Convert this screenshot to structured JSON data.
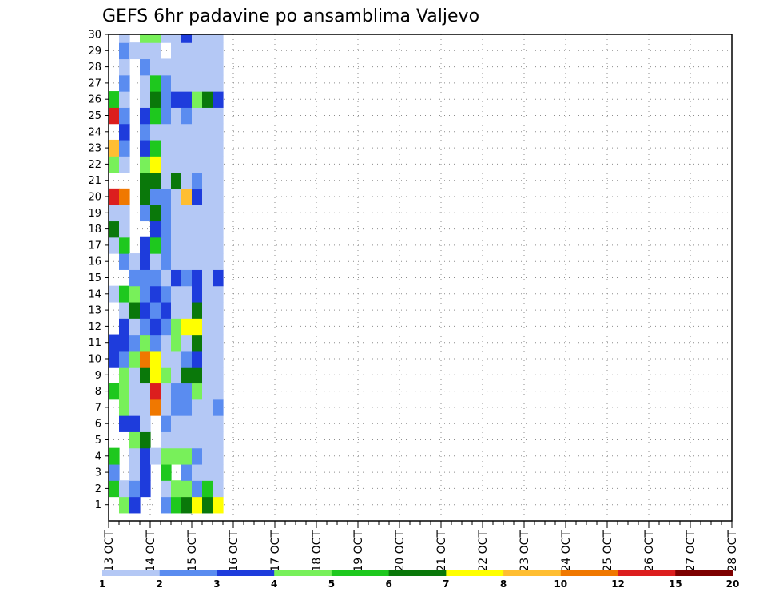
{
  "chart_data": {
    "type": "heatmap",
    "title": "GEFS 6hr padavine po ansamblima Valjevo",
    "xlabel": "",
    "ylabel": "",
    "x_ticks": [
      "13 OCT",
      "14 OCT",
      "15 OCT",
      "16 OCT",
      "17 OCT",
      "18 OCT",
      "19 OCT",
      "20 OCT",
      "21 OCT",
      "22 OCT",
      "23 OCT",
      "24 OCT",
      "25 OCT",
      "26 OCT",
      "27 OCT",
      "28 OCT"
    ],
    "y_ticks": [
      "1",
      "2",
      "3",
      "4",
      "5",
      "6",
      "7",
      "8",
      "9",
      "10",
      "11",
      "12",
      "13",
      "14",
      "15",
      "16",
      "17",
      "18",
      "19",
      "20",
      "21",
      "22",
      "23",
      "24",
      "25",
      "26",
      "27",
      "28",
      "29",
      "30"
    ],
    "x_unit": "6-hour step from 13 OCT 00Z",
    "xlim": [
      0,
      60
    ],
    "ylim": [
      0,
      30
    ],
    "grid": true,
    "colorbar": {
      "labels": [
        "1",
        "2",
        "3",
        "4",
        "5",
        "6",
        "7",
        "8",
        "10",
        "12",
        "15",
        "20"
      ],
      "colors": [
        "#b4c8f5",
        "#5a8cf0",
        "#1e3cdc",
        "#78f05a",
        "#1ec81e",
        "#0a780a",
        "#ffff00",
        "#ffbe32",
        "#f07800",
        "#dc1e1e",
        "#7d0000"
      ]
    },
    "cells": [
      [
        0,
        2,
        5
      ],
      [
        0,
        3,
        2
      ],
      [
        0,
        4,
        5
      ],
      [
        0,
        8,
        5
      ],
      [
        0,
        10,
        3
      ],
      [
        0,
        11,
        3
      ],
      [
        0,
        14,
        1
      ],
      [
        0,
        17,
        1
      ],
      [
        0,
        18,
        6
      ],
      [
        0,
        19,
        1
      ],
      [
        0,
        20,
        10
      ],
      [
        0,
        22,
        4
      ],
      [
        0,
        23,
        8
      ],
      [
        0,
        25,
        10
      ],
      [
        0,
        26,
        5
      ],
      [
        1,
        1,
        4
      ],
      [
        1,
        2,
        1
      ],
      [
        1,
        6,
        3
      ],
      [
        1,
        7,
        4
      ],
      [
        1,
        8,
        4
      ],
      [
        1,
        9,
        4
      ],
      [
        1,
        10,
        2
      ],
      [
        1,
        11,
        3
      ],
      [
        1,
        12,
        3
      ],
      [
        1,
        13,
        1
      ],
      [
        1,
        14,
        5
      ],
      [
        1,
        16,
        2
      ],
      [
        1,
        17,
        5
      ],
      [
        1,
        18,
        1
      ],
      [
        1,
        19,
        1
      ],
      [
        1,
        20,
        9
      ],
      [
        1,
        22,
        1
      ],
      [
        1,
        23,
        2
      ],
      [
        1,
        24,
        3
      ],
      [
        1,
        25,
        2
      ],
      [
        1,
        26,
        1
      ],
      [
        1,
        27,
        2
      ],
      [
        1,
        28,
        1
      ],
      [
        1,
        29,
        2
      ],
      [
        1,
        30,
        1
      ],
      [
        2,
        1,
        3
      ],
      [
        2,
        2,
        2
      ],
      [
        2,
        3,
        1
      ],
      [
        2,
        4,
        1
      ],
      [
        2,
        5,
        4
      ],
      [
        2,
        6,
        3
      ],
      [
        2,
        7,
        1
      ],
      [
        2,
        8,
        1
      ],
      [
        2,
        9,
        1
      ],
      [
        2,
        10,
        4
      ],
      [
        2,
        11,
        2
      ],
      [
        2,
        12,
        1
      ],
      [
        2,
        13,
        6
      ],
      [
        2,
        14,
        4
      ],
      [
        2,
        15,
        2
      ],
      [
        2,
        16,
        1
      ],
      [
        2,
        29,
        1
      ],
      [
        3,
        2,
        3
      ],
      [
        3,
        3,
        3
      ],
      [
        3,
        4,
        3
      ],
      [
        3,
        5,
        6
      ],
      [
        3,
        6,
        1
      ],
      [
        3,
        7,
        1
      ],
      [
        3,
        8,
        1
      ],
      [
        3,
        9,
        6
      ],
      [
        3,
        10,
        9
      ],
      [
        3,
        11,
        4
      ],
      [
        3,
        12,
        2
      ],
      [
        3,
        13,
        3
      ],
      [
        3,
        14,
        2
      ],
      [
        3,
        15,
        2
      ],
      [
        3,
        16,
        3
      ],
      [
        3,
        17,
        3
      ],
      [
        3,
        19,
        2
      ],
      [
        3,
        20,
        6
      ],
      [
        3,
        21,
        6
      ],
      [
        3,
        22,
        4
      ],
      [
        3,
        23,
        3
      ],
      [
        3,
        24,
        2
      ],
      [
        3,
        25,
        3
      ],
      [
        3,
        26,
        1
      ],
      [
        3,
        27,
        1
      ],
      [
        3,
        28,
        2
      ],
      [
        3,
        29,
        1
      ],
      [
        3,
        30,
        4
      ],
      [
        4,
        4,
        1
      ],
      [
        4,
        7,
        9
      ],
      [
        4,
        8,
        10
      ],
      [
        4,
        9,
        7
      ],
      [
        4,
        10,
        7
      ],
      [
        4,
        11,
        2
      ],
      [
        4,
        12,
        3
      ],
      [
        4,
        13,
        2
      ],
      [
        4,
        14,
        3
      ],
      [
        4,
        15,
        2
      ],
      [
        4,
        16,
        1
      ],
      [
        4,
        17,
        5
      ],
      [
        4,
        18,
        3
      ],
      [
        4,
        19,
        6
      ],
      [
        4,
        20,
        2
      ],
      [
        4,
        21,
        6
      ],
      [
        4,
        22,
        7
      ],
      [
        4,
        23,
        5
      ],
      [
        4,
        24,
        1
      ],
      [
        4,
        25,
        5
      ],
      [
        4,
        26,
        6
      ],
      [
        4,
        27,
        5
      ],
      [
        4,
        28,
        1
      ],
      [
        4,
        29,
        1
      ],
      [
        4,
        30,
        4
      ],
      [
        5,
        1,
        2
      ],
      [
        5,
        2,
        1
      ],
      [
        5,
        3,
        5
      ],
      [
        5,
        4,
        4
      ],
      [
        5,
        5,
        1
      ],
      [
        5,
        6,
        2
      ],
      [
        5,
        7,
        1
      ],
      [
        5,
        8,
        1
      ],
      [
        5,
        9,
        4
      ],
      [
        5,
        10,
        1
      ],
      [
        5,
        11,
        1
      ],
      [
        5,
        12,
        2
      ],
      [
        5,
        13,
        3
      ],
      [
        5,
        14,
        2
      ],
      [
        5,
        15,
        1
      ],
      [
        5,
        16,
        2
      ],
      [
        5,
        17,
        2
      ],
      [
        5,
        18,
        2
      ],
      [
        5,
        19,
        2
      ],
      [
        5,
        20,
        2
      ],
      [
        5,
        21,
        1
      ],
      [
        5,
        22,
        1
      ],
      [
        5,
        23,
        1
      ],
      [
        5,
        24,
        1
      ],
      [
        5,
        25,
        2
      ],
      [
        5,
        26,
        2
      ],
      [
        5,
        27,
        2
      ],
      [
        5,
        28,
        1
      ],
      [
        5,
        30,
        1
      ],
      [
        6,
        1,
        5
      ],
      [
        6,
        2,
        4
      ],
      [
        6,
        4,
        4
      ],
      [
        6,
        5,
        1
      ],
      [
        6,
        6,
        1
      ],
      [
        6,
        7,
        2
      ],
      [
        6,
        8,
        2
      ],
      [
        6,
        9,
        1
      ],
      [
        6,
        10,
        1
      ],
      [
        6,
        11,
        4
      ],
      [
        6,
        12,
        4
      ],
      [
        6,
        13,
        1
      ],
      [
        6,
        14,
        1
      ],
      [
        6,
        15,
        3
      ],
      [
        6,
        16,
        1
      ],
      [
        6,
        17,
        1
      ],
      [
        6,
        18,
        1
      ],
      [
        6,
        19,
        1
      ],
      [
        6,
        20,
        1
      ],
      [
        6,
        21,
        6
      ],
      [
        6,
        22,
        1
      ],
      [
        6,
        23,
        1
      ],
      [
        6,
        24,
        1
      ],
      [
        6,
        25,
        1
      ],
      [
        6,
        26,
        3
      ],
      [
        6,
        27,
        1
      ],
      [
        6,
        28,
        1
      ],
      [
        6,
        29,
        1
      ],
      [
        6,
        30,
        1
      ],
      [
        7,
        1,
        6
      ],
      [
        7,
        2,
        4
      ],
      [
        7,
        3,
        2
      ],
      [
        7,
        4,
        4
      ],
      [
        7,
        5,
        1
      ],
      [
        7,
        6,
        1
      ],
      [
        7,
        7,
        2
      ],
      [
        7,
        8,
        2
      ],
      [
        7,
        9,
        6
      ],
      [
        7,
        10,
        2
      ],
      [
        7,
        11,
        1
      ],
      [
        7,
        12,
        7
      ],
      [
        7,
        13,
        1
      ],
      [
        7,
        14,
        1
      ],
      [
        7,
        15,
        2
      ],
      [
        7,
        16,
        1
      ],
      [
        7,
        17,
        1
      ],
      [
        7,
        18,
        1
      ],
      [
        7,
        19,
        1
      ],
      [
        7,
        20,
        8
      ],
      [
        7,
        21,
        1
      ],
      [
        7,
        22,
        1
      ],
      [
        7,
        23,
        1
      ],
      [
        7,
        24,
        1
      ],
      [
        7,
        25,
        2
      ],
      [
        7,
        26,
        3
      ],
      [
        7,
        27,
        1
      ],
      [
        7,
        28,
        1
      ],
      [
        7,
        29,
        1
      ],
      [
        7,
        30,
        3
      ],
      [
        8,
        1,
        7
      ],
      [
        8,
        2,
        2
      ],
      [
        8,
        3,
        1
      ],
      [
        8,
        4,
        2
      ],
      [
        8,
        5,
        1
      ],
      [
        8,
        6,
        1
      ],
      [
        8,
        7,
        1
      ],
      [
        8,
        8,
        4
      ],
      [
        8,
        9,
        6
      ],
      [
        8,
        10,
        3
      ],
      [
        8,
        11,
        6
      ],
      [
        8,
        12,
        7
      ],
      [
        8,
        13,
        6
      ],
      [
        8,
        14,
        3
      ],
      [
        8,
        15,
        3
      ],
      [
        8,
        16,
        1
      ],
      [
        8,
        17,
        1
      ],
      [
        8,
        18,
        1
      ],
      [
        8,
        19,
        1
      ],
      [
        8,
        20,
        3
      ],
      [
        8,
        21,
        2
      ],
      [
        8,
        22,
        1
      ],
      [
        8,
        23,
        1
      ],
      [
        8,
        24,
        1
      ],
      [
        8,
        25,
        1
      ],
      [
        8,
        26,
        4
      ],
      [
        8,
        27,
        1
      ],
      [
        8,
        28,
        1
      ],
      [
        8,
        29,
        1
      ],
      [
        8,
        30,
        1
      ],
      [
        9,
        1,
        6
      ],
      [
        9,
        2,
        5
      ],
      [
        9,
        3,
        1
      ],
      [
        9,
        4,
        1
      ],
      [
        9,
        5,
        1
      ],
      [
        9,
        6,
        1
      ],
      [
        9,
        7,
        1
      ],
      [
        9,
        8,
        1
      ],
      [
        9,
        9,
        1
      ],
      [
        9,
        10,
        1
      ],
      [
        9,
        11,
        1
      ],
      [
        9,
        12,
        1
      ],
      [
        9,
        13,
        1
      ],
      [
        9,
        14,
        1
      ],
      [
        9,
        15,
        1
      ],
      [
        9,
        16,
        1
      ],
      [
        9,
        17,
        1
      ],
      [
        9,
        18,
        1
      ],
      [
        9,
        19,
        1
      ],
      [
        9,
        20,
        1
      ],
      [
        9,
        21,
        1
      ],
      [
        9,
        22,
        1
      ],
      [
        9,
        23,
        1
      ],
      [
        9,
        24,
        1
      ],
      [
        9,
        25,
        1
      ],
      [
        9,
        26,
        6
      ],
      [
        9,
        27,
        1
      ],
      [
        9,
        28,
        1
      ],
      [
        9,
        29,
        1
      ],
      [
        9,
        30,
        1
      ],
      [
        10,
        1,
        7
      ],
      [
        10,
        2,
        1
      ],
      [
        10,
        3,
        1
      ],
      [
        10,
        4,
        1
      ],
      [
        10,
        5,
        1
      ],
      [
        10,
        6,
        1
      ],
      [
        10,
        7,
        2
      ],
      [
        10,
        8,
        1
      ],
      [
        10,
        9,
        1
      ],
      [
        10,
        10,
        1
      ],
      [
        10,
        11,
        1
      ],
      [
        10,
        12,
        1
      ],
      [
        10,
        13,
        1
      ],
      [
        10,
        14,
        1
      ],
      [
        10,
        15,
        3
      ],
      [
        10,
        16,
        1
      ],
      [
        10,
        17,
        1
      ],
      [
        10,
        18,
        1
      ],
      [
        10,
        19,
        1
      ],
      [
        10,
        20,
        1
      ],
      [
        10,
        21,
        1
      ],
      [
        10,
        22,
        1
      ],
      [
        10,
        23,
        1
      ],
      [
        10,
        24,
        1
      ],
      [
        10,
        25,
        1
      ],
      [
        10,
        26,
        3
      ],
      [
        10,
        27,
        1
      ],
      [
        10,
        28,
        1
      ],
      [
        10,
        29,
        1
      ],
      [
        10,
        30,
        1
      ]
    ]
  }
}
